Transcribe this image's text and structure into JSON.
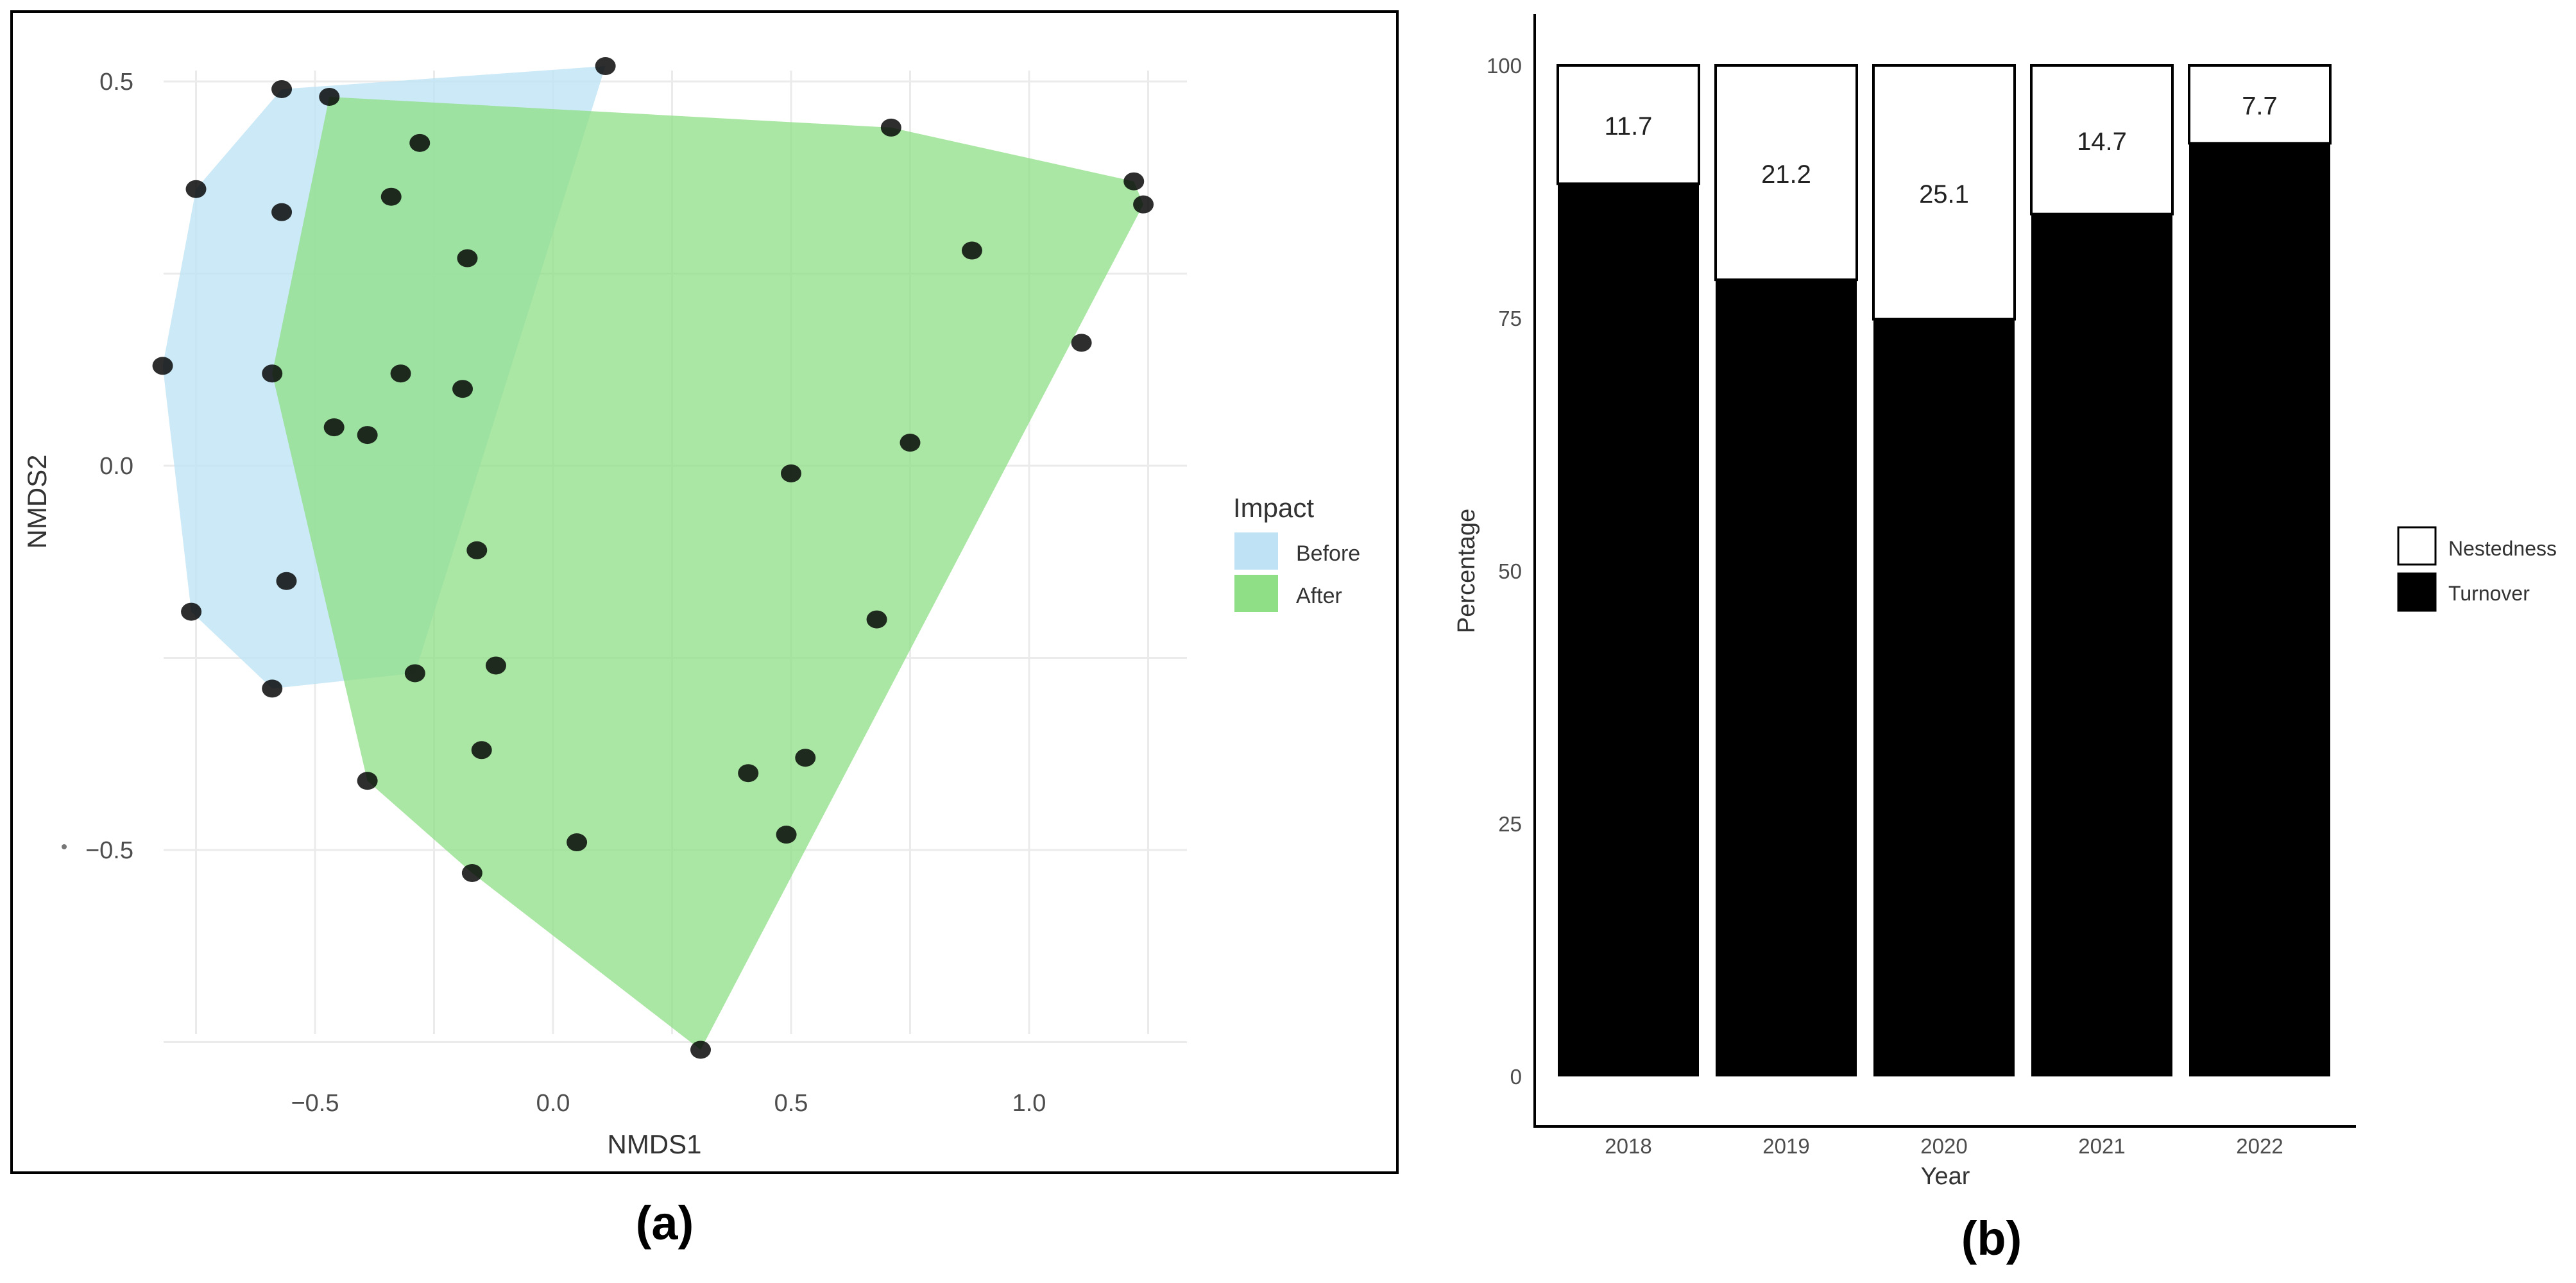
{
  "chart_data": [
    {
      "id": "a",
      "panel_label": "(a)",
      "type": "scatter",
      "xlabel": "NMDS1",
      "ylabel": "NMDS2",
      "xlim": [
        -0.82,
        1.3
      ],
      "ylim": [
        -0.75,
        0.55
      ],
      "x_ticks": [
        -0.5,
        0.0,
        0.5,
        1.0
      ],
      "x_tick_labels": [
        "−0.5",
        "0.0",
        "0.5",
        "1.0"
      ],
      "y_ticks": [
        0.5,
        0.0,
        -0.5
      ],
      "y_tick_labels": [
        "0.5",
        "0.0",
        "−0.5"
      ],
      "grid": true,
      "legend": {
        "title": "Impact",
        "position": "right",
        "items": [
          {
            "name": "Before",
            "color": "#bfe3f5"
          },
          {
            "name": "After",
            "color": "#8fdf86"
          }
        ]
      },
      "hulls": [
        {
          "name": "Before",
          "color": "#bfe3f5",
          "opacity": 0.8,
          "polygon": [
            [
              -0.57,
              0.49
            ],
            [
              0.11,
              0.52
            ],
            [
              -0.29,
              -0.27
            ],
            [
              -0.59,
              -0.29
            ],
            [
              -0.76,
              -0.19
            ],
            [
              -0.82,
              0.13
            ],
            [
              -0.75,
              0.36
            ]
          ]
        },
        {
          "name": "After",
          "color": "#8fdf86",
          "opacity": 0.75,
          "polygon": [
            [
              -0.47,
              0.48
            ],
            [
              0.71,
              0.44
            ],
            [
              1.22,
              0.37
            ],
            [
              1.24,
              0.34
            ],
            [
              0.31,
              -0.76
            ],
            [
              -0.17,
              -0.53
            ],
            [
              -0.39,
              -0.41
            ],
            [
              -0.59,
              0.12
            ]
          ]
        }
      ],
      "points": [
        [
          -0.57,
          0.49
        ],
        [
          -0.47,
          0.48
        ],
        [
          0.11,
          0.52
        ],
        [
          -0.75,
          0.36
        ],
        [
          -0.57,
          0.33
        ],
        [
          -0.82,
          0.13
        ],
        [
          -0.59,
          0.12
        ],
        [
          -0.56,
          -0.15
        ],
        [
          -0.76,
          -0.19
        ],
        [
          -0.59,
          -0.29
        ],
        [
          -0.28,
          0.42
        ],
        [
          -0.34,
          0.35
        ],
        [
          -0.18,
          0.27
        ],
        [
          -0.32,
          0.12
        ],
        [
          -0.19,
          0.1
        ],
        [
          -0.46,
          0.05
        ],
        [
          -0.39,
          0.04
        ],
        [
          -0.16,
          -0.11
        ],
        [
          -0.12,
          -0.26
        ],
        [
          -0.29,
          -0.27
        ],
        [
          -0.15,
          -0.37
        ],
        [
          -0.39,
          -0.41
        ],
        [
          -0.17,
          -0.53
        ],
        [
          0.05,
          -0.49
        ],
        [
          0.71,
          0.44
        ],
        [
          1.22,
          0.37
        ],
        [
          1.24,
          0.34
        ],
        [
          0.88,
          0.28
        ],
        [
          1.11,
          0.16
        ],
        [
          0.75,
          0.03
        ],
        [
          0.5,
          -0.01
        ],
        [
          0.68,
          -0.2
        ],
        [
          0.41,
          -0.4
        ],
        [
          0.53,
          -0.38
        ],
        [
          0.49,
          -0.48
        ],
        [
          0.31,
          -0.76
        ]
      ]
    },
    {
      "id": "b",
      "panel_label": "(b)",
      "type": "bar",
      "stacked": true,
      "xlabel": "Year",
      "ylabel": "Percentage",
      "categories": [
        "2018",
        "2019",
        "2020",
        "2021",
        "2022"
      ],
      "ylim": [
        0,
        100
      ],
      "y_ticks": [
        0,
        25,
        50,
        75,
        100
      ],
      "series": [
        {
          "name": "Turnover",
          "color": "#000000",
          "values": [
            88.3,
            78.8,
            74.9,
            85.3,
            92.3
          ]
        },
        {
          "name": "Nestedness",
          "color": "#ffffff",
          "values": [
            11.7,
            21.2,
            25.1,
            14.7,
            7.7
          ]
        }
      ],
      "data_labels": [
        "11.7",
        "21.2",
        "25.1",
        "14.7",
        "7.7"
      ],
      "legend": {
        "position": "right",
        "items": [
          {
            "name": "Nestedness",
            "color": "#ffffff"
          },
          {
            "name": "Turnover",
            "color": "#000000"
          }
        ]
      }
    }
  ]
}
